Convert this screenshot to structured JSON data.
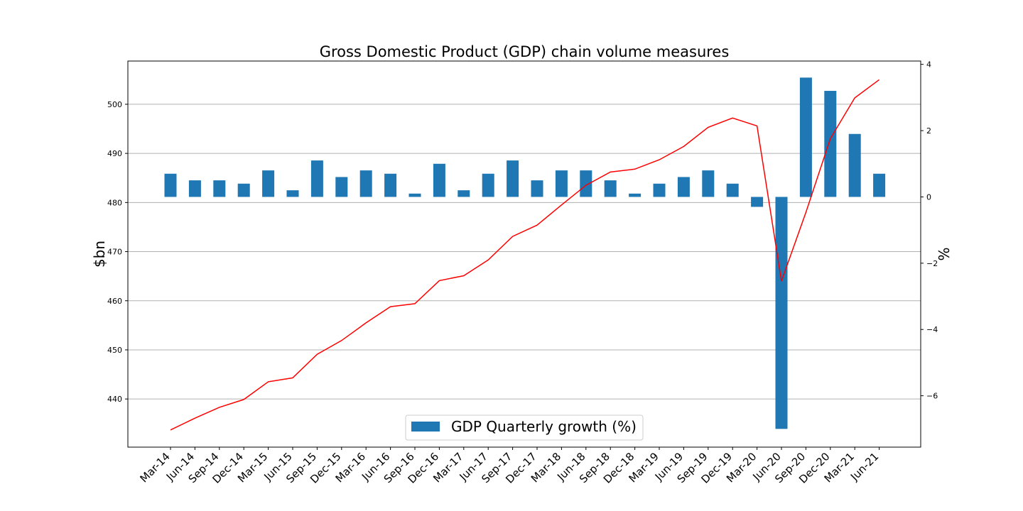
{
  "chart_data": {
    "type": "bar",
    "title": "Gross Domestic Product (GDP) chain volume measures",
    "ylabel": "$bn",
    "y2label": "%",
    "ylim": [
      430.2,
      508.8
    ],
    "y2lim": [
      -7.55,
      4.1
    ],
    "yticks": [
      440,
      450,
      460,
      470,
      480,
      490,
      500
    ],
    "y2ticks": [
      -6,
      -4,
      -2,
      0,
      2,
      4
    ],
    "y2tick_labels": [
      "−6",
      "−4",
      "−2",
      "0",
      "2",
      "4"
    ],
    "grid": "horizontal",
    "legend_position": "lower center",
    "colors": {
      "bar": "#1f77b4",
      "line": "#ff0000",
      "grid": "#b0b0b0"
    },
    "categories": [
      "Mar-14",
      "Jun-14",
      "Sep-14",
      "Dec-14",
      "Mar-15",
      "Jun-15",
      "Sep-15",
      "Dec-15",
      "Mar-16",
      "Jun-16",
      "Sep-16",
      "Dec-16",
      "Mar-17",
      "Jun-17",
      "Sep-17",
      "Dec-17",
      "Mar-18",
      "Jun-18",
      "Sep-18",
      "Dec-18",
      "Mar-19",
      "Jun-19",
      "Sep-19",
      "Dec-19",
      "Mar-20",
      "Jun-20",
      "Sep-20",
      "Dec-20",
      "Mar-21",
      "Jun-21"
    ],
    "series": [
      {
        "name": "GDP Quarterly growth (%)",
        "type": "bar",
        "axis": "right",
        "values": [
          0.7,
          0.5,
          0.5,
          0.4,
          0.8,
          0.2,
          1.1,
          0.6,
          0.8,
          0.7,
          0.1,
          1.0,
          0.2,
          0.7,
          1.1,
          0.5,
          0.8,
          0.8,
          0.5,
          0.1,
          0.4,
          0.6,
          0.8,
          0.4,
          -0.3,
          -7.0,
          3.6,
          3.2,
          1.9,
          0.7
        ]
      },
      {
        "type": "line",
        "axis": "left",
        "values": [
          433.7,
          436.1,
          438.3,
          439.9,
          443.5,
          444.3,
          449.1,
          451.9,
          455.5,
          458.8,
          459.4,
          464.1,
          465.1,
          468.3,
          473.1,
          475.4,
          479.5,
          483.5,
          486.2,
          486.8,
          488.7,
          491.4,
          495.3,
          497.2,
          495.6,
          464.0,
          478.0,
          493.0,
          501.3,
          505.0
        ]
      }
    ]
  }
}
